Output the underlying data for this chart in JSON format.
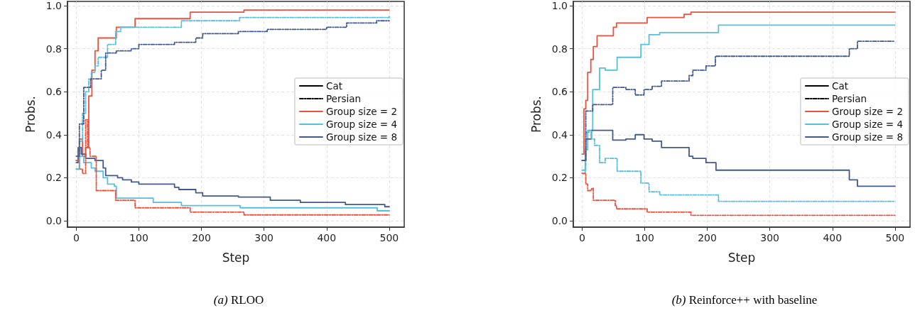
{
  "chart_data": [
    {
      "type": "step",
      "title": "(a) RLOO",
      "xlabel": "Step",
      "ylabel": "Probs.",
      "xlim": [
        -14,
        524
      ],
      "ylim": [
        -0.03,
        1.02
      ],
      "xticks": [
        0,
        100,
        200,
        300,
        400,
        500
      ],
      "yticks": [
        {
          "value": 0,
          "label": "0.0"
        },
        {
          "value": 0.2,
          "label": "0.2"
        },
        {
          "value": 0.4,
          "label": "0.4"
        },
        {
          "value": 0.6,
          "label": "0.6"
        },
        {
          "value": 0.8,
          "label": "0.8"
        },
        {
          "value": 1,
          "label": "1.0"
        }
      ],
      "grid": true,
      "legend": "right",
      "series": [
        {
          "name": "Cat",
          "color": "#000000",
          "line_style": "solid"
        },
        {
          "name": "Persian",
          "color": "#000000",
          "line_style": "dashdot"
        },
        {
          "name": "Group size = 2",
          "color": "#e8533f",
          "line_style": "solid",
          "x": [
            0,
            5,
            10,
            15,
            20,
            25,
            30,
            35,
            64,
            94,
            182,
            268,
            500
          ],
          "values": [
            0.28,
            0.38,
            0.3,
            0.34,
            0.58,
            0.7,
            0.79,
            0.85,
            0.9,
            0.94,
            0.97,
            0.98,
            0.98
          ]
        },
        {
          "name": "Group size = 4",
          "color": "#56bfdc",
          "line_style": "solid",
          "x": [
            0,
            5,
            12,
            24,
            30,
            43,
            50,
            61,
            64,
            123,
            168,
            262,
            481,
            500
          ],
          "values": [
            0.24,
            0.3,
            0.27,
            0.245,
            0.23,
            0.2,
            0.17,
            0.16,
            0.105,
            0.085,
            0.07,
            0.06,
            0.046,
            0.046
          ]
        },
        {
          "name": "Group size = 8",
          "color": "#42598f",
          "line_style": "solid",
          "x": [
            0,
            3,
            8,
            15,
            30,
            43,
            47,
            66,
            74,
            88,
            100,
            157,
            164,
            191,
            202,
            259,
            310,
            358,
            430,
            493,
            500
          ],
          "values": [
            0.27,
            0.34,
            0.31,
            0.29,
            0.28,
            0.245,
            0.21,
            0.2,
            0.19,
            0.18,
            0.17,
            0.155,
            0.145,
            0.13,
            0.115,
            0.11,
            0.095,
            0.085,
            0.075,
            0.065,
            0.065
          ]
        },
        {
          "color": "#e8533f",
          "line_style": "dashdot",
          "x": [
            0,
            5,
            10,
            15,
            18,
            22,
            32,
            63,
            94,
            182,
            268,
            500
          ],
          "values": [
            0.28,
            0.24,
            0.22,
            0.47,
            0.34,
            0.3,
            0.14,
            0.095,
            0.06,
            0.04,
            0.027,
            0.027
          ]
        },
        {
          "color": "#56bfdc",
          "line_style": "dashdot",
          "x": [
            0,
            5,
            10,
            15,
            20,
            24,
            30,
            35,
            50,
            63,
            71,
            168,
            261,
            500
          ],
          "values": [
            0.24,
            0.37,
            0.5,
            0.6,
            0.66,
            0.69,
            0.72,
            0.76,
            0.82,
            0.88,
            0.9,
            0.93,
            0.945,
            0.95
          ]
        },
        {
          "color": "#42598f",
          "line_style": "dashdot",
          "x": [
            0,
            5,
            12,
            23,
            40,
            47,
            64,
            88,
            100,
            157,
            191,
            202,
            259,
            305,
            400,
            432,
            480,
            500
          ],
          "values": [
            0.3,
            0.45,
            0.62,
            0.66,
            0.7,
            0.78,
            0.79,
            0.8,
            0.82,
            0.83,
            0.85,
            0.87,
            0.88,
            0.89,
            0.9,
            0.92,
            0.93,
            0.93
          ]
        }
      ]
    },
    {
      "type": "step",
      "title": "(b) Reinforce++ with baseline",
      "xlabel": "Step",
      "ylabel": "Probs.",
      "xlim": [
        -14,
        524
      ],
      "ylim": [
        -0.03,
        1.02
      ],
      "xticks": [
        0,
        100,
        200,
        300,
        400,
        500
      ],
      "yticks": [
        {
          "value": 0,
          "label": "0.0"
        },
        {
          "value": 0.2,
          "label": "0.2"
        },
        {
          "value": 0.4,
          "label": "0.4"
        },
        {
          "value": 0.6,
          "label": "0.6"
        },
        {
          "value": 0.8,
          "label": "0.8"
        },
        {
          "value": 1,
          "label": "1.0"
        }
      ],
      "grid": true,
      "legend": "right",
      "series": [
        {
          "name": "Cat",
          "color": "#000000",
          "line_style": "solid"
        },
        {
          "name": "Persian",
          "color": "#000000",
          "line_style": "dashdot"
        },
        {
          "name": "Group size = 2",
          "color": "#e8533f",
          "line_style": "solid",
          "x": [
            0,
            3,
            6,
            9,
            14,
            18,
            24,
            50,
            55,
            104,
            163,
            174,
            500
          ],
          "values": [
            0.31,
            0.52,
            0.56,
            0.69,
            0.75,
            0.81,
            0.86,
            0.9,
            0.92,
            0.945,
            0.96,
            0.97,
            0.97
          ]
        },
        {
          "name": "Group size = 4",
          "color": "#56bfdc",
          "line_style": "solid",
          "x": [
            0,
            5,
            9,
            17,
            28,
            37,
            56,
            94,
            107,
            124,
            218,
            500
          ],
          "values": [
            0.22,
            0.33,
            0.42,
            0.61,
            0.71,
            0.7,
            0.76,
            0.82,
            0.865,
            0.875,
            0.91,
            0.91
          ]
        },
        {
          "name": "Group size = 8",
          "color": "#42598f",
          "line_style": "solid",
          "x": [
            0,
            6,
            15,
            49,
            70,
            85,
            99,
            112,
            127,
            171,
            177,
            198,
            214,
            427,
            440,
            500
          ],
          "values": [
            0.28,
            0.38,
            0.42,
            0.375,
            0.38,
            0.4,
            0.38,
            0.37,
            0.34,
            0.3,
            0.29,
            0.27,
            0.235,
            0.19,
            0.16,
            0.16
          ]
        },
        {
          "color": "#e8533f",
          "line_style": "dashdot",
          "x": [
            0,
            6,
            9,
            15,
            18,
            53,
            55,
            104,
            174,
            500
          ],
          "values": [
            0.22,
            0.17,
            0.14,
            0.15,
            0.095,
            0.07,
            0.055,
            0.04,
            0.025,
            0.025
          ]
        },
        {
          "color": "#56bfdc",
          "line_style": "dashdot",
          "x": [
            0,
            6,
            11,
            15,
            20,
            28,
            37,
            56,
            94,
            107,
            124,
            218,
            500
          ],
          "values": [
            0.235,
            0.41,
            0.42,
            0.38,
            0.35,
            0.27,
            0.29,
            0.23,
            0.175,
            0.135,
            0.12,
            0.09,
            0.09
          ]
        },
        {
          "color": "#42598f",
          "line_style": "dashdot",
          "x": [
            0,
            6,
            17,
            49,
            70,
            85,
            99,
            112,
            127,
            171,
            177,
            198,
            213,
            427,
            440,
            500
          ],
          "values": [
            0.28,
            0.51,
            0.54,
            0.62,
            0.61,
            0.585,
            0.61,
            0.625,
            0.65,
            0.675,
            0.7,
            0.72,
            0.765,
            0.8,
            0.835,
            0.835
          ]
        }
      ]
    }
  ]
}
